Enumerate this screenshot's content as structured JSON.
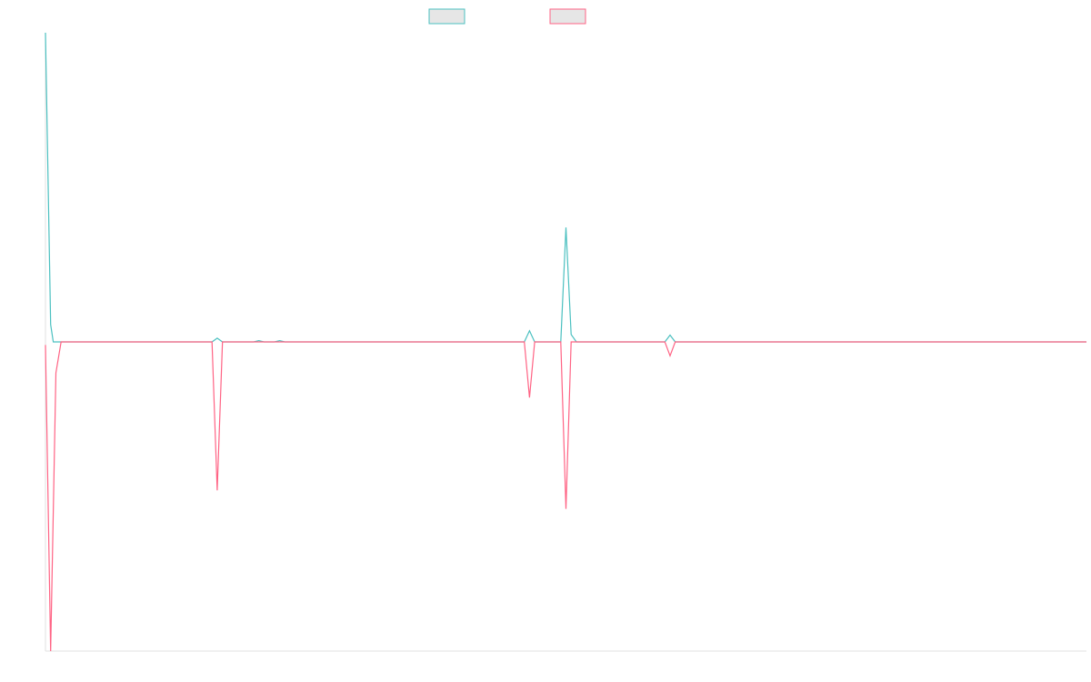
{
  "chart_data": {
    "type": "line",
    "title": "",
    "xlabel": "",
    "ylabel": "",
    "grid": false,
    "legend_position": "top-center",
    "ylim": [
      -100,
      100
    ],
    "series": [
      {
        "name": "",
        "color": "#4bc0c0",
        "legend_fill": "#e6e6e6",
        "points": [
          [
            0,
            100
          ],
          [
            1,
            5.6
          ],
          [
            1.5,
            0
          ],
          [
            32,
            0
          ],
          [
            33,
            1.2
          ],
          [
            34,
            0
          ],
          [
            40,
            0
          ],
          [
            41,
            0.4
          ],
          [
            42,
            0
          ],
          [
            44,
            0
          ],
          [
            45,
            0.4
          ],
          [
            46,
            0
          ],
          [
            92,
            0
          ],
          [
            93,
            3.6
          ],
          [
            94,
            0
          ],
          [
            99,
            0
          ],
          [
            100,
            37
          ],
          [
            101,
            2.4
          ],
          [
            102,
            0
          ],
          [
            119,
            0
          ],
          [
            120,
            2.2
          ],
          [
            121,
            0
          ],
          [
            200,
            0
          ]
        ]
      },
      {
        "name": "",
        "color": "#ff6384",
        "legend_fill": "#e6e6e6",
        "points": [
          [
            0,
            -1
          ],
          [
            1,
            -100
          ],
          [
            2,
            -10
          ],
          [
            3,
            0
          ],
          [
            32,
            0
          ],
          [
            33,
            -48
          ],
          [
            34,
            0
          ],
          [
            92,
            0
          ],
          [
            93,
            -18
          ],
          [
            94,
            0
          ],
          [
            99,
            0
          ],
          [
            100,
            -54
          ],
          [
            101,
            0
          ],
          [
            119,
            0
          ],
          [
            120,
            -4.5
          ],
          [
            121,
            0
          ],
          [
            200,
            0
          ]
        ]
      }
    ]
  }
}
